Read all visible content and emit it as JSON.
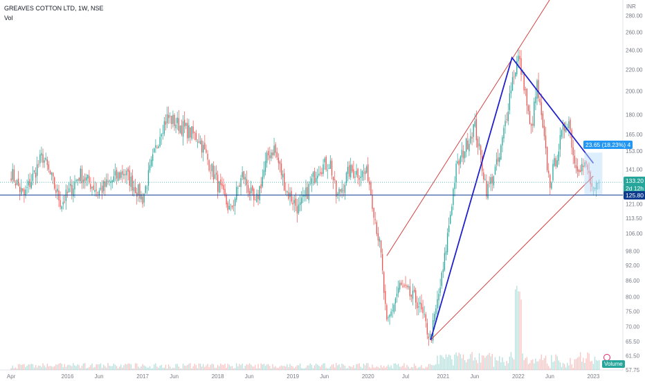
{
  "header": {
    "symbol": "GREAVES COTTON LTD, 1W, NSE",
    "indicator": "Vol",
    "currency": "INR"
  },
  "markers": {
    "measure": "23.65 (18.23%) 4",
    "price_tag": "133.20",
    "countdown": "2d 12h",
    "horizontal_level": "125.80"
  },
  "volume_label": "Volume",
  "colors": {
    "up": "#26a69a",
    "down": "#ef5350",
    "red_line": "#d32f2f",
    "blue_line": "#1f1fcc",
    "level_line": "#0d3b8e",
    "measure_bg": "#2196f3"
  },
  "chart_data": {
    "type": "candlestick",
    "scale": "log",
    "price_axis_ticks": [
      57.75,
      61.5,
      65.5,
      70,
      75,
      80,
      86,
      92,
      98,
      106,
      113.5,
      121,
      130,
      141,
      153,
      165,
      180,
      200,
      220,
      240,
      260,
      280
    ],
    "time_axis_ticks": [
      "Apr",
      "2016",
      "Jun",
      "2017",
      "Jun",
      "2018",
      "Jun",
      "2019",
      "Jun",
      "2020",
      "Jul",
      "2021",
      "Jun",
      "2022",
      "Jun",
      "2023"
    ],
    "price_range": [
      57.75,
      300
    ],
    "series": [
      {
        "name": "GREAVES COTTON LTD",
        "anchors": [
          [
            "Apr 2015",
            139
          ],
          [
            "Jun 2015",
            125
          ],
          [
            "Sep 2015",
            150
          ],
          [
            "Dec 2015",
            121
          ],
          [
            "Mar 2016",
            138
          ],
          [
            "Jun 2016",
            128
          ],
          [
            "Oct 2016",
            140
          ],
          [
            "Jan 2017",
            124
          ],
          [
            "Apr 2017",
            170
          ],
          [
            "May 2017",
            178
          ],
          [
            "Oct 2017",
            162
          ],
          [
            "Jan 2018",
            132
          ],
          [
            "Mar 2018",
            117
          ],
          [
            "May 2018",
            138
          ],
          [
            "Jul 2018",
            120
          ],
          [
            "Sep 2018",
            150
          ],
          [
            "Oct 2018",
            155
          ],
          [
            "Dec 2018",
            128
          ],
          [
            "Feb 2019",
            118
          ],
          [
            "May 2019",
            142
          ],
          [
            "Jul 2019",
            145
          ],
          [
            "Aug 2019",
            124
          ],
          [
            "Oct 2019",
            140
          ],
          [
            "Jan 2020",
            138
          ],
          [
            "Mar 2020",
            98
          ],
          [
            "Apr 2020",
            70
          ],
          [
            "Jun 2020",
            84
          ],
          [
            "Sep 2020",
            78
          ],
          [
            "Nov 2020",
            66
          ],
          [
            "Jan 2021",
            90
          ],
          [
            "Mar 2021",
            140
          ],
          [
            "Jun 2021",
            172
          ],
          [
            "Aug 2021",
            128
          ],
          [
            "Oct 2021",
            148
          ],
          [
            "Dec 2021",
            210
          ],
          [
            "Jan 2022",
            232
          ],
          [
            "Feb 2022",
            205
          ],
          [
            "Mar 2022",
            165
          ],
          [
            "Apr 2022",
            205
          ],
          [
            "Jun 2022",
            132
          ],
          [
            "Aug 2022",
            165
          ],
          [
            "Sep 2022",
            178
          ],
          [
            "Oct 2022",
            145
          ],
          [
            "Dec 2022",
            142
          ],
          [
            "Jan 2023",
            126
          ],
          [
            "Feb 2023",
            133.2
          ]
        ],
        "last_close": 133.2
      }
    ],
    "annotations": [
      {
        "kind": "trend-line",
        "color": "red",
        "from": [
          "Nov 2020",
          66
        ],
        "to": [
          "Jan 2023",
          137
        ]
      },
      {
        "kind": "trend-line",
        "color": "red",
        "from": [
          "Apr 2020",
          96
        ],
        "to": [
          "Jun 2022",
          300
        ]
      },
      {
        "kind": "trend-line",
        "color": "blue",
        "points": [
          [
            "Nov 2020",
            66
          ],
          [
            "Dec 2021",
            232
          ],
          [
            "Jan 2023",
            145
          ]
        ]
      },
      {
        "kind": "horizontal-line",
        "value": 125.8
      },
      {
        "kind": "measure",
        "text": "23.65 (18.23%)"
      }
    ]
  }
}
